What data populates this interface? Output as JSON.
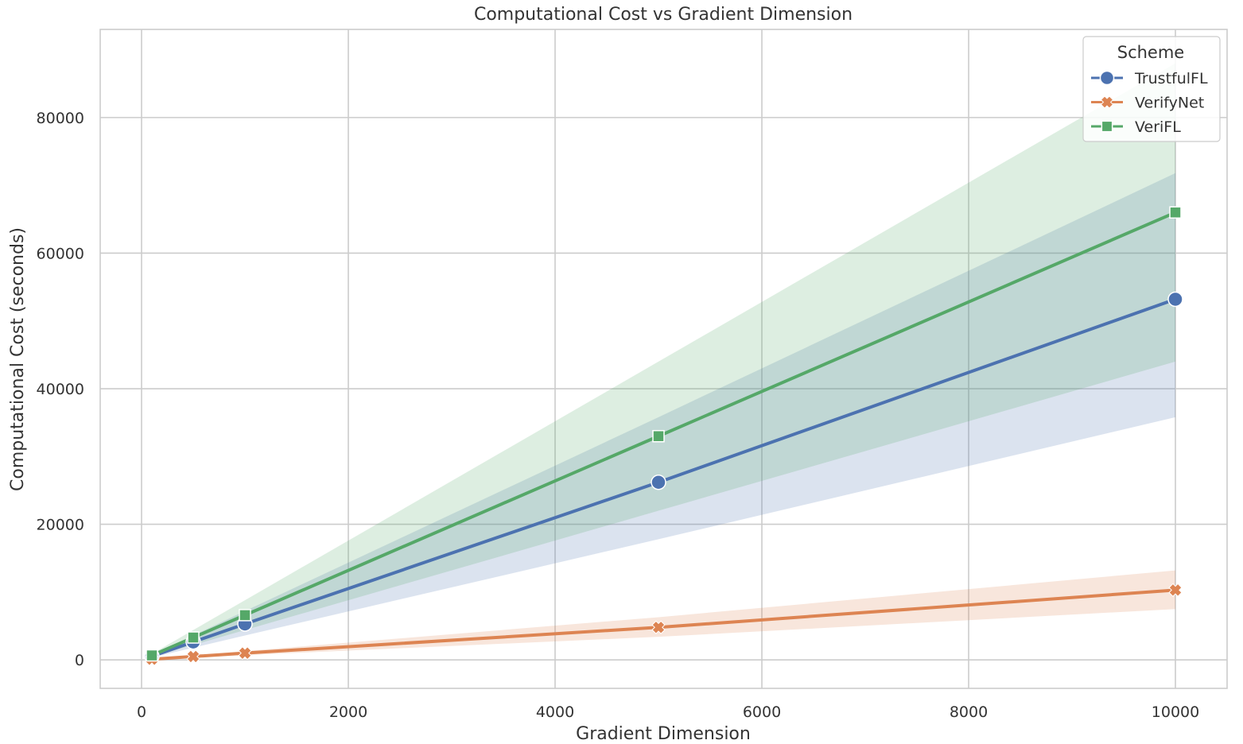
{
  "chart_data": {
    "type": "line",
    "title": "Computational Cost vs Gradient Dimension",
    "xlabel": "Gradient Dimension",
    "ylabel": "Computational Cost (seconds)",
    "xlim": [
      -400,
      10500
    ],
    "ylim": [
      -4200,
      93000
    ],
    "xticks": [
      0,
      2000,
      4000,
      6000,
      8000,
      10000
    ],
    "yticks": [
      0,
      20000,
      40000,
      60000,
      80000
    ],
    "grid": true,
    "legend": {
      "title": "Scheme",
      "position": "top-right"
    },
    "x": [
      100,
      500,
      1000,
      5000,
      10000
    ],
    "series": [
      {
        "name": "TrustfulFL",
        "color": "#4c72b0",
        "marker": "circle",
        "values": [
          530,
          2650,
          5300,
          26200,
          53200
        ],
        "lower": [
          360,
          1800,
          3600,
          17800,
          35800
        ],
        "upper": [
          720,
          3600,
          7200,
          35800,
          71800
        ]
      },
      {
        "name": "VerifyNet",
        "color": "#dd8452",
        "marker": "x",
        "values": [
          100,
          500,
          1000,
          4800,
          10300
        ],
        "lower": [
          70,
          350,
          700,
          3400,
          7500
        ],
        "upper": [
          130,
          650,
          1300,
          6300,
          13200
        ]
      },
      {
        "name": "VeriFL",
        "color": "#55a868",
        "marker": "square",
        "values": [
          660,
          3300,
          6600,
          33000,
          66000
        ],
        "lower": [
          440,
          2200,
          4400,
          22000,
          44000
        ],
        "upper": [
          880,
          4400,
          8800,
          44000,
          88000
        ]
      }
    ]
  }
}
